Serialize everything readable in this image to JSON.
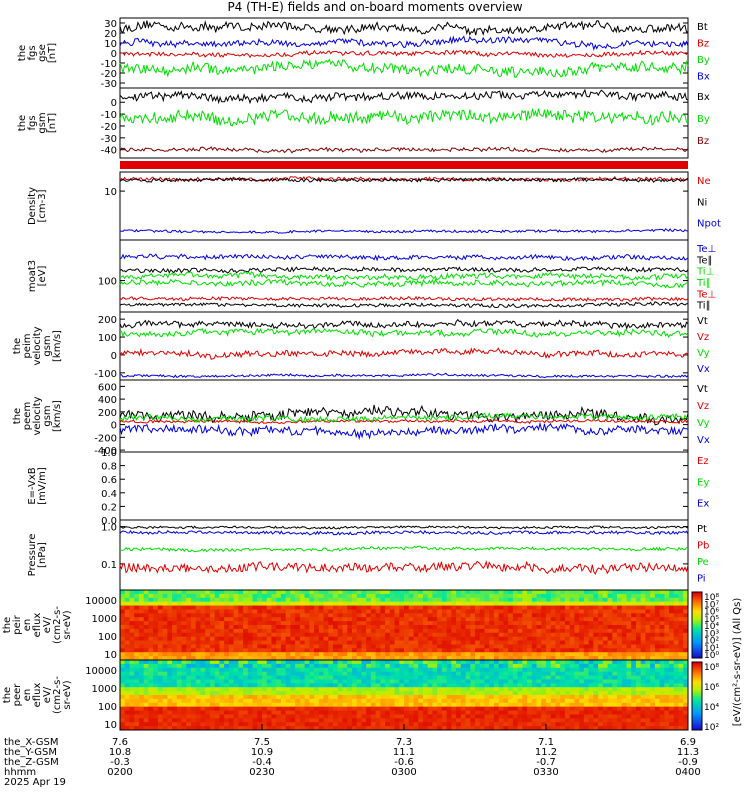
{
  "title": "P4 (TH-E) fields and on-board moments overview",
  "date": "2025 Apr 19",
  "colors": {
    "black": "#000000",
    "red": "#e00000",
    "green": "#00e000",
    "blue": "#0000e0",
    "darkred": "#800000"
  },
  "chart_data": [
    {
      "type": "line",
      "ylabel": [
        "the",
        "fgs",
        "gse",
        "[nT]"
      ],
      "yticks": [
        "30",
        "20",
        "10",
        "0",
        "-10",
        "-20",
        "-30"
      ],
      "ylim": [
        -35,
        35
      ],
      "series": [
        {
          "name": "Bt",
          "color": "black",
          "level": 25,
          "noise": 4
        },
        {
          "name": "Bz",
          "color": "red",
          "level": -1,
          "noise": 2
        },
        {
          "name": "By",
          "color": "green",
          "level": -15,
          "noise": 5
        },
        {
          "name": "Bx",
          "color": "blue",
          "level": 10,
          "noise": 3
        }
      ]
    },
    {
      "type": "line",
      "ylabel": [
        "the",
        "fgs",
        "gsm",
        "[nT]"
      ],
      "yticks": [
        "0",
        "-10",
        "-20",
        "-30",
        "-40"
      ],
      "ylim": [
        -47,
        12
      ],
      "series": [
        {
          "name": "Bx",
          "color": "black",
          "level": 4,
          "noise": 3
        },
        {
          "name": "By",
          "color": "green",
          "level": -12,
          "noise": 5
        },
        {
          "name": "Bz",
          "color": "darkred",
          "level": -40,
          "noise": 1.5
        }
      ]
    },
    {
      "type": "line",
      "log": true,
      "ylabel": [
        "Density",
        "[cm-3]"
      ],
      "yticks": [
        "10"
      ],
      "ylim": [
        0.6,
        30
      ],
      "series": [
        {
          "name": "Ne",
          "color": "red",
          "level": 20,
          "noise": 0.04
        },
        {
          "name": "Ni",
          "color": "black",
          "level": 19,
          "noise": 0.04
        },
        {
          "name": "Npot",
          "color": "blue",
          "level": 1.0,
          "noise": 0.03
        }
      ]
    },
    {
      "type": "line",
      "log": true,
      "ylabel": [
        "moat3",
        "[eV]"
      ],
      "yticks": [
        "100"
      ],
      "ylim": [
        25,
        600
      ],
      "series": [
        {
          "name": "Te⊥",
          "color": "blue",
          "level": 280,
          "noise": 0.04
        },
        {
          "name": "Te∥",
          "color": "black",
          "level": 160,
          "noise": 0.04
        },
        {
          "name": "Ti⊥",
          "color": "green",
          "level": 120,
          "noise": 0.05
        },
        {
          "name": "Ti∥",
          "color": "green",
          "level": 90,
          "noise": 0.05
        },
        {
          "name": "Te⊥2",
          "color": "red",
          "level": 45,
          "noise": 0.03
        },
        {
          "name": "Ti∥2",
          "color": "black",
          "level": 34,
          "noise": 0.03
        }
      ]
    },
    {
      "type": "line",
      "ylabel": [
        "the",
        "peim",
        "velocity",
        "gsm",
        "[km/s]"
      ],
      "yticks": [
        "200",
        "100",
        "0",
        "-100"
      ],
      "ylim": [
        -140,
        240
      ],
      "series": [
        {
          "name": "Vt",
          "color": "black",
          "level": 175,
          "noise": 15
        },
        {
          "name": "Vz",
          "color": "red",
          "level": 10,
          "noise": 15
        },
        {
          "name": "Vy",
          "color": "green",
          "level": 120,
          "noise": 15
        },
        {
          "name": "Vx",
          "color": "blue",
          "level": -115,
          "noise": 6
        }
      ]
    },
    {
      "type": "line",
      "ylabel": [
        "the",
        "peem",
        "velocity",
        "gsm",
        "[km/s]"
      ],
      "yticks": [
        "600",
        "400",
        "200",
        "0",
        "-200",
        "-400"
      ],
      "ylim": [
        -430,
        700
      ],
      "series": [
        {
          "name": "Vt",
          "color": "black",
          "level": 150,
          "noise": 70
        },
        {
          "name": "Vz",
          "color": "red",
          "level": 50,
          "noise": 20
        },
        {
          "name": "Vy",
          "color": "green",
          "level": 100,
          "noise": 40
        },
        {
          "name": "Vx",
          "color": "blue",
          "level": -80,
          "noise": 60
        }
      ]
    },
    {
      "type": "line",
      "ylabel": [
        "E=-VxB",
        "[mV/m]"
      ],
      "yticks": [
        "1.0",
        "0.8",
        "0.6",
        "0.4",
        "0.2",
        "0.0"
      ],
      "ylim": [
        0,
        1
      ],
      "series": [
        {
          "name": "Ez",
          "color": "red"
        },
        {
          "name": "Ey",
          "color": "green"
        },
        {
          "name": "Ex",
          "color": "blue"
        }
      ]
    },
    {
      "type": "line",
      "log": true,
      "ylabel": [
        "Pressure",
        "[nPa]"
      ],
      "yticks": [
        "1.0",
        "0.1"
      ],
      "ylim": [
        0.02,
        1.5
      ],
      "series": [
        {
          "name": "Pt",
          "color": "black",
          "level": 0.95,
          "noise": 0.03
        },
        {
          "name": "Pb",
          "color": "red",
          "level": 0.08,
          "noise": 0.12
        },
        {
          "name": "Pe",
          "color": "green",
          "level": 0.25,
          "noise": 0.04
        },
        {
          "name": "Pi",
          "color": "blue",
          "level": 0.7,
          "noise": 0.04
        }
      ]
    },
    {
      "type": "heatmap",
      "ylabel": [
        "the",
        "peir",
        "en",
        "eflux",
        "eV/",
        "(cm2-s-",
        "sr-eV)"
      ],
      "yticks": [
        "10000",
        "1000",
        "100",
        "10"
      ],
      "zlim": [
        1,
        100000000
      ]
    },
    {
      "type": "heatmap",
      "ylabel": [
        "the",
        "peer",
        "en",
        "eflux",
        "eV/",
        "(cm2-s-",
        "sr-eV)"
      ],
      "yticks": [
        "10000",
        "1000",
        "100",
        "10"
      ],
      "zlim": [
        1,
        100000000
      ]
    }
  ],
  "colorbar": {
    "upper_ticks": [
      "10⁸",
      "10⁷",
      "10⁶",
      "10⁵",
      "10⁴",
      "10³",
      "10²",
      "10¹",
      "10⁰"
    ],
    "lower_ticks": [
      "10⁸",
      "10⁶",
      "10⁴",
      "10²"
    ],
    "label": "[eV/(cm²-s-sr-eV)] (All Qs)"
  },
  "xaxis": {
    "rows": [
      {
        "label": "the_X-GSM",
        "values": [
          "7.6",
          "7.5",
          "7.3",
          "7.1",
          "6.9"
        ]
      },
      {
        "label": "the_Y-GSM",
        "values": [
          "10.8",
          "10.9",
          "11.1",
          "11.2",
          "11.3"
        ]
      },
      {
        "label": "the_Z-GSM",
        "values": [
          "-0.3",
          "-0.4",
          "-0.6",
          "-0.7",
          "-0.9"
        ]
      },
      {
        "label": "hhmm",
        "values": [
          "0200",
          "0230",
          "0300",
          "0330",
          "0400"
        ]
      }
    ]
  }
}
